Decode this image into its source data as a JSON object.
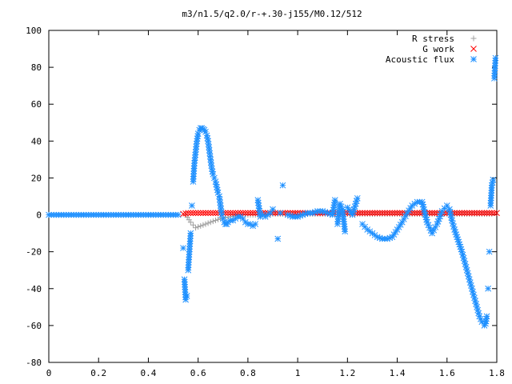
{
  "chart_data": {
    "type": "scatter",
    "title": "m3/n1.5/q2.0/r-+.30-j155/M0.12/512",
    "xlabel": "",
    "ylabel": "",
    "xlim": [
      0,
      1.8
    ],
    "ylim": [
      -80,
      100
    ],
    "x_ticks": [
      "0",
      "0.2",
      "0.4",
      "0.6",
      "0.8",
      "1",
      "1.2",
      "1.4",
      "1.6",
      "1.8"
    ],
    "y_ticks": [
      "100",
      "80",
      "60",
      "40",
      "20",
      "0",
      "-20",
      "-40",
      "-60",
      "-80"
    ],
    "grid": false,
    "legend_position": "top-right",
    "series": [
      {
        "name": "R stress",
        "marker": "+",
        "color": "#a0a0a0",
        "x": [
          0.55,
          0.57,
          0.59,
          0.61,
          0.63,
          0.65,
          0.67,
          0.69,
          0.71,
          0.73,
          0.75,
          0.77,
          0.79,
          0.81,
          0.85,
          0.9,
          0.95,
          1.0,
          1.05,
          1.1,
          1.15,
          1.2,
          1.3,
          1.4,
          1.5,
          1.6,
          1.7,
          1.78
        ],
        "y": [
          0,
          -4,
          -7,
          -6,
          -5,
          -4,
          -3,
          -2,
          -1.5,
          -1,
          -0.5,
          0,
          0,
          0,
          0,
          0.5,
          0.5,
          0.5,
          0.5,
          0.5,
          0.5,
          0.5,
          0.5,
          0.5,
          0.5,
          0.5,
          0.5,
          0.5
        ]
      },
      {
        "name": "G work",
        "marker": "x",
        "color": "#ff0000",
        "x": [
          0.54,
          0.56,
          0.58,
          0.6,
          0.62,
          0.64,
          0.66,
          0.68,
          0.7,
          0.72,
          0.74,
          0.76,
          0.78,
          0.8,
          0.82,
          0.84,
          0.86,
          0.88,
          0.9,
          0.92,
          0.94,
          0.96,
          0.98,
          1.0,
          1.02,
          1.04,
          1.06,
          1.08,
          1.1,
          1.12,
          1.14,
          1.16,
          1.18,
          1.2,
          1.22,
          1.24,
          1.26,
          1.28,
          1.3,
          1.32,
          1.34,
          1.36,
          1.38,
          1.4,
          1.42,
          1.44,
          1.46,
          1.48,
          1.5,
          1.52,
          1.54,
          1.56,
          1.58,
          1.6,
          1.62,
          1.64,
          1.66,
          1.68,
          1.7,
          1.72,
          1.74,
          1.76,
          1.78,
          1.8
        ],
        "y": [
          0.5,
          1,
          1,
          1,
          1,
          1,
          1,
          1,
          1,
          1,
          1,
          1,
          1,
          1,
          1,
          1,
          1,
          1,
          1,
          1,
          1,
          1,
          1,
          1,
          1,
          1,
          1,
          1,
          1,
          1,
          1,
          1,
          1,
          1,
          1,
          1,
          1,
          1,
          1,
          1,
          1,
          1,
          1,
          1,
          1,
          1,
          1,
          1,
          1,
          1,
          1,
          1,
          1,
          1,
          1,
          1,
          1,
          1,
          1,
          1,
          1,
          1,
          1,
          1
        ]
      },
      {
        "name": "Acoustic flux",
        "marker": "*",
        "color": "#1e90ff",
        "x": [
          0.0,
          0.02,
          0.04,
          0.06,
          0.08,
          0.1,
          0.12,
          0.14,
          0.16,
          0.18,
          0.2,
          0.22,
          0.24,
          0.26,
          0.28,
          0.3,
          0.32,
          0.34,
          0.36,
          0.38,
          0.4,
          0.42,
          0.44,
          0.46,
          0.48,
          0.5,
          0.52,
          0.54,
          0.545,
          0.55,
          0.555,
          0.56,
          0.565,
          0.57,
          0.575,
          0.58,
          0.585,
          0.59,
          0.595,
          0.6,
          0.605,
          0.61,
          0.615,
          0.62,
          0.625,
          0.63,
          0.635,
          0.64,
          0.645,
          0.65,
          0.655,
          0.66,
          0.665,
          0.67,
          0.675,
          0.68,
          0.685,
          0.69,
          0.695,
          0.7,
          0.705,
          0.71,
          0.715,
          0.72,
          0.73,
          0.74,
          0.75,
          0.76,
          0.77,
          0.78,
          0.79,
          0.8,
          0.81,
          0.82,
          0.83,
          0.84,
          0.85,
          0.86,
          0.87,
          0.88,
          0.89,
          0.9,
          0.92,
          0.93,
          0.94,
          0.96,
          0.98,
          1.0,
          1.02,
          1.04,
          1.06,
          1.08,
          1.1,
          1.12,
          1.14,
          1.15,
          1.16,
          1.17,
          1.18,
          1.19,
          1.2,
          1.22,
          1.24,
          1.26,
          1.28,
          1.3,
          1.32,
          1.34,
          1.36,
          1.38,
          1.4,
          1.42,
          1.44,
          1.46,
          1.48,
          1.5,
          1.52,
          1.54,
          1.56,
          1.58,
          1.6,
          1.61,
          1.62,
          1.63,
          1.64,
          1.65,
          1.66,
          1.67,
          1.68,
          1.69,
          1.7,
          1.71,
          1.72,
          1.73,
          1.74,
          1.75,
          1.755,
          1.76,
          1.765,
          1.77,
          1.775,
          1.78,
          1.785,
          1.79,
          1.795
        ],
        "y": [
          0,
          0,
          0,
          0,
          0,
          0,
          0,
          0,
          0,
          0,
          0,
          0,
          0,
          0,
          0,
          0,
          0,
          0,
          0,
          0,
          0,
          0,
          0,
          0,
          0,
          0,
          0,
          -18,
          -35,
          -46,
          -44,
          -30,
          -20,
          -10,
          5,
          18,
          28,
          34,
          40,
          44,
          46,
          47,
          47,
          46.5,
          46,
          45,
          43,
          40,
          35,
          30,
          25,
          22,
          20,
          18,
          15,
          12,
          10,
          5,
          0,
          -2,
          -4,
          -5,
          -5,
          -4,
          -3,
          -3,
          -2,
          -1,
          -1,
          -2,
          -4,
          -5,
          -5,
          -6,
          -5,
          8,
          -1,
          0,
          -1,
          0,
          1,
          3,
          -13,
          1,
          16,
          0,
          -1,
          -1,
          0,
          1,
          1,
          2,
          2,
          1,
          0,
          8,
          -5,
          6,
          3,
          -9,
          4,
          0,
          9,
          -5,
          -8,
          -10,
          -12,
          -13,
          -13,
          -12,
          -8,
          -4,
          1,
          5,
          7,
          7,
          -4,
          -10,
          -5,
          2,
          5,
          3,
          -3,
          -8,
          -12,
          -16,
          -20,
          -25,
          -30,
          -35,
          -40,
          -45,
          -50,
          -55,
          -58,
          -60,
          -59,
          -55,
          -40,
          -20,
          5,
          16,
          19,
          74,
          85
        ]
      }
    ]
  }
}
